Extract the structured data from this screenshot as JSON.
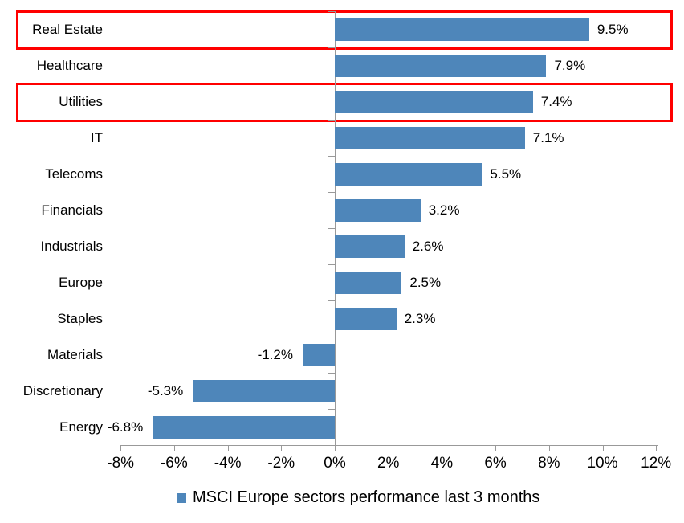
{
  "chart_data": {
    "type": "bar",
    "orientation": "horizontal",
    "title": "",
    "categories": [
      "Real Estate",
      "Healthcare",
      "Utilities",
      "IT",
      "Telecoms",
      "Financials",
      "Industrials",
      "Europe",
      "Staples",
      "Materials",
      "Discretionary",
      "Energy"
    ],
    "values": [
      9.5,
      7.9,
      7.4,
      7.1,
      5.5,
      3.2,
      2.6,
      2.5,
      2.3,
      -1.2,
      -5.3,
      -6.8
    ],
    "data_labels": [
      "9.5%",
      "7.9%",
      "7.4%",
      "7.1%",
      "5.5%",
      "3.2%",
      "2.6%",
      "2.5%",
      "2.3%",
      "-1.2%",
      "-5.3%",
      "-6.8%"
    ],
    "x_axis": {
      "min": -8,
      "max": 12,
      "ticks": [
        -8,
        -6,
        -4,
        -2,
        0,
        2,
        4,
        6,
        8,
        10,
        12
      ],
      "tick_labels": [
        "-8%",
        "-6%",
        "-4%",
        "-2%",
        "0%",
        "2%",
        "4%",
        "6%",
        "8%",
        "10%",
        "12%"
      ]
    },
    "grid": false,
    "legend": {
      "label": "MSCI Europe sectors performance last 3 months",
      "position": "bottom"
    },
    "highlighted_categories": [
      "Real Estate",
      "Utilities"
    ],
    "colors": {
      "bar": "#4E86BA",
      "highlight_box": "#FF0000",
      "axis": "#999999",
      "text": "#000000",
      "background": "#FFFFFF"
    }
  }
}
